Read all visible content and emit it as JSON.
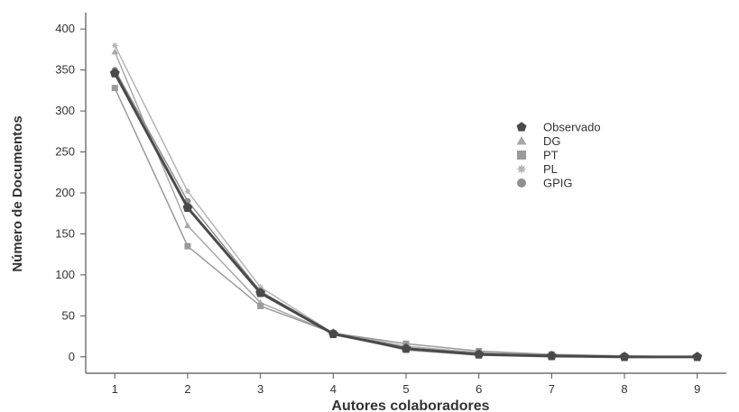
{
  "chart_data": {
    "type": "line",
    "xlabel": "Autores colaboradores",
    "ylabel": "Número de Documentos",
    "x": [
      1,
      2,
      3,
      4,
      5,
      6,
      7,
      8,
      9
    ],
    "xlim": [
      0.6,
      9.4
    ],
    "ylim": [
      -20,
      420
    ],
    "yticks": [
      0,
      50,
      100,
      150,
      200,
      250,
      300,
      350,
      400
    ],
    "grid": false,
    "legend_position": "right",
    "series": [
      {
        "name": "Observado",
        "marker": "pentagon",
        "color": "#4a4a4a",
        "values": [
          346,
          182,
          78,
          28,
          10,
          3,
          1,
          0,
          0
        ]
      },
      {
        "name": "DG",
        "marker": "triangle",
        "color": "#a8a8a8",
        "values": [
          372,
          160,
          66,
          29,
          13,
          5,
          2,
          1,
          0
        ]
      },
      {
        "name": "PT",
        "marker": "square",
        "color": "#9a9a9a",
        "values": [
          328,
          135,
          62,
          29,
          16,
          7,
          3,
          1,
          0
        ]
      },
      {
        "name": "PL",
        "marker": "star",
        "color": "#b5b5b5",
        "values": [
          380,
          202,
          85,
          29,
          8,
          2,
          0,
          0,
          0
        ]
      },
      {
        "name": "GPIG",
        "marker": "circle",
        "color": "#8f8f8f",
        "values": [
          350,
          190,
          80,
          29,
          11,
          4,
          1,
          0,
          0
        ]
      }
    ]
  }
}
